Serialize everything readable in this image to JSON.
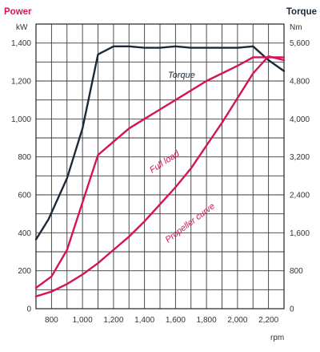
{
  "chart_data": {
    "type": "line",
    "left_axis": {
      "title": "Power",
      "unit": "kW",
      "ticks": [
        0,
        200,
        400,
        600,
        800,
        1000,
        1200,
        1400
      ],
      "tick_labels": [
        "0",
        "200",
        "400",
        "600",
        "800",
        "1,000",
        "1,200",
        "1,400"
      ],
      "ylim": [
        0,
        1500
      ]
    },
    "right_axis": {
      "title": "Torque",
      "unit": "Nm",
      "ticks": [
        0,
        800,
        1600,
        2400,
        3200,
        4000,
        4800,
        5600
      ],
      "tick_labels": [
        "0",
        "800",
        "1,600",
        "2,400",
        "3,200",
        "4,000",
        "4,800",
        "5,600"
      ],
      "ylim": [
        0,
        6000
      ]
    },
    "x_axis": {
      "unit": "rpm",
      "ticks": [
        800,
        1000,
        1200,
        1400,
        1600,
        1800,
        2000,
        2200
      ],
      "tick_labels": [
        "800",
        "1,000",
        "1,200",
        "1,400",
        "1,600",
        "1,800",
        "2,000",
        "2,200"
      ],
      "xlim": [
        700,
        2300
      ]
    },
    "grid": true,
    "series": [
      {
        "name": "Torque",
        "axis": "right",
        "color": "#1b2a3a",
        "x": [
          700,
          780,
          900,
          1000,
          1100,
          1200,
          1300,
          1400,
          1500,
          1600,
          1700,
          1800,
          1900,
          2000,
          2100,
          2200,
          2300
        ],
        "y": [
          1460,
          1880,
          2750,
          3800,
          5360,
          5530,
          5530,
          5500,
          5500,
          5530,
          5500,
          5500,
          5500,
          5500,
          5530,
          5240,
          5010
        ]
      },
      {
        "name": "Full load",
        "axis": "left",
        "color": "#d4145a",
        "x": [
          700,
          800,
          900,
          1000,
          1100,
          1200,
          1300,
          1400,
          1500,
          1600,
          1700,
          1800,
          1900,
          2000,
          2100,
          2200,
          2300
        ],
        "y": [
          110,
          170,
          310,
          560,
          810,
          880,
          950,
          1000,
          1050,
          1100,
          1150,
          1200,
          1240,
          1280,
          1325,
          1325,
          1325
        ]
      },
      {
        "name": "Propeller curve",
        "axis": "left",
        "color": "#d4145a",
        "x": [
          700,
          800,
          900,
          1000,
          1100,
          1200,
          1300,
          1400,
          1500,
          1600,
          1700,
          1800,
          1900,
          2000,
          2100,
          2200,
          2300
        ],
        "y": [
          65,
          90,
          130,
          180,
          240,
          310,
          380,
          460,
          550,
          640,
          740,
          860,
          980,
          1110,
          1240,
          1330,
          1310
        ]
      }
    ],
    "colors": {
      "power": "#d4145a",
      "torque": "#1b2a3a",
      "grid": "#3a3a3a"
    }
  }
}
